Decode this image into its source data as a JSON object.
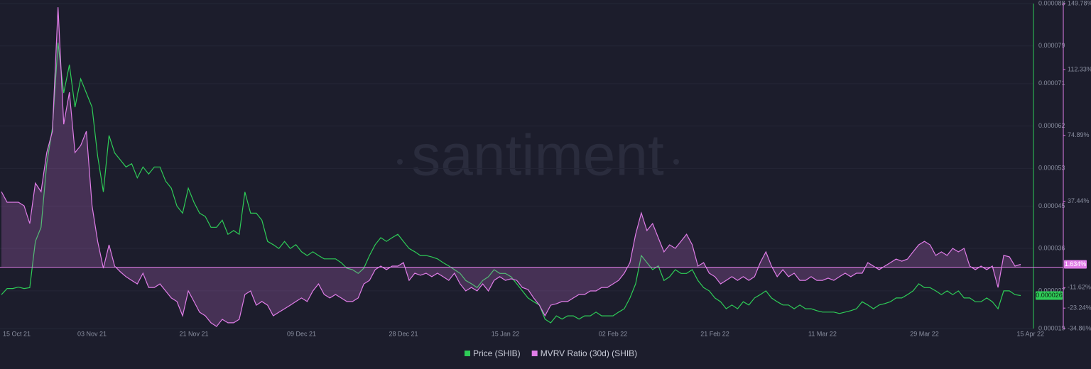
{
  "chart_data": {
    "type": "line",
    "watermark": "santiment",
    "categories": [
      "15 Oct 21",
      null,
      null,
      null,
      null,
      null,
      null,
      null,
      null,
      null,
      null,
      null,
      null,
      null,
      null,
      null,
      "03 Nov 21",
      null,
      null,
      null,
      null,
      null,
      null,
      null,
      null,
      null,
      null,
      null,
      null,
      null,
      null,
      null,
      null,
      null,
      "21 Nov 21",
      null,
      null,
      null,
      null,
      null,
      null,
      null,
      null,
      null,
      null,
      null,
      null,
      null,
      null,
      null,
      null,
      null,
      null,
      "09 Dec 21",
      null,
      null,
      null,
      null,
      null,
      null,
      null,
      null,
      null,
      null,
      null,
      null,
      null,
      null,
      null,
      null,
      null,
      "28 Dec 21",
      null,
      null,
      null,
      null,
      null,
      null,
      null,
      null,
      null,
      null,
      null,
      null,
      null,
      null,
      null,
      null,
      null,
      "15 Jan 22",
      null,
      null,
      null,
      null,
      null,
      null,
      null,
      null,
      null,
      null,
      null,
      null,
      null,
      null,
      null,
      null,
      null,
      null,
      "02 Feb 22",
      null,
      null,
      null,
      null,
      null,
      null,
      null,
      null,
      null,
      null,
      null,
      null,
      null,
      null,
      null,
      null,
      null,
      "21 Feb 22",
      null,
      null,
      null,
      null,
      null,
      null,
      null,
      null,
      null,
      null,
      null,
      null,
      null,
      null,
      null,
      null,
      null,
      null,
      "11 Mar 22",
      null,
      null,
      null,
      null,
      null,
      null,
      null,
      null,
      null,
      null,
      null,
      null,
      null,
      null,
      null,
      null,
      null,
      "29 Mar 22",
      null,
      null,
      null,
      null,
      null,
      null,
      null,
      null,
      null,
      null,
      null,
      null,
      null,
      null,
      null,
      null,
      "15 Apr 22"
    ],
    "series": [
      {
        "name": "Price (SHIB)",
        "color": "#2ecc57",
        "axis": "y",
        "last_label": "0.000026",
        "values": [
          2.62e-05,
          2.75e-05,
          2.75e-05,
          2.78e-05,
          2.75e-05,
          2.77e-05,
          3.75e-05,
          4.05e-05,
          5.4e-05,
          6.16e-05,
          7.97e-05,
          6.9e-05,
          7.5e-05,
          6.6e-05,
          7.2e-05,
          6.9e-05,
          6.6e-05,
          5.56e-05,
          4.8e-05,
          6e-05,
          5.63e-05,
          5.48e-05,
          5.33e-05,
          5.4e-05,
          5.1e-05,
          5.33e-05,
          5.18e-05,
          5.33e-05,
          5.33e-05,
          5.03e-05,
          4.88e-05,
          4.5e-05,
          4.35e-05,
          4.88e-05,
          4.58e-05,
          4.35e-05,
          4.28e-05,
          4.05e-05,
          4.05e-05,
          4.2e-05,
          3.9e-05,
          3.98e-05,
          3.9e-05,
          4.8e-05,
          4.35e-05,
          4.35e-05,
          4.2e-05,
          3.75e-05,
          3.68e-05,
          3.6e-05,
          3.75e-05,
          3.6e-05,
          3.68e-05,
          3.53e-05,
          3.45e-05,
          3.53e-05,
          3.45e-05,
          3.38e-05,
          3.38e-05,
          3.38e-05,
          3.3e-05,
          3.18e-05,
          3.15e-05,
          3.07e-05,
          3.18e-05,
          3.45e-05,
          3.68e-05,
          3.83e-05,
          3.75e-05,
          3.83e-05,
          3.9e-05,
          3.75e-05,
          3.6e-05,
          3.53e-05,
          3.45e-05,
          3.45e-05,
          3.42e-05,
          3.38e-05,
          3.3e-05,
          3.23e-05,
          3.15e-05,
          3.07e-05,
          2.92e-05,
          2.85e-05,
          2.77e-05,
          2.92e-05,
          3e-05,
          3.15e-05,
          3.07e-05,
          3.07e-05,
          3e-05,
          2.85e-05,
          2.7e-05,
          2.55e-05,
          2.47e-05,
          2.4e-05,
          2.1e-05,
          2.02e-05,
          2.17e-05,
          2.1e-05,
          2.17e-05,
          2.17e-05,
          2.1e-05,
          2.17e-05,
          2.17e-05,
          2.25e-05,
          2.17e-05,
          2.17e-05,
          2.17e-05,
          2.25e-05,
          2.32e-05,
          2.55e-05,
          2.85e-05,
          3.45e-05,
          3.3e-05,
          3.15e-05,
          3.23e-05,
          2.92e-05,
          3e-05,
          3.15e-05,
          3.07e-05,
          3.07e-05,
          3.15e-05,
          2.92e-05,
          2.77e-05,
          2.7e-05,
          2.55e-05,
          2.47e-05,
          2.32e-05,
          2.4e-05,
          2.32e-05,
          2.47e-05,
          2.4e-05,
          2.55e-05,
          2.62e-05,
          2.7e-05,
          2.55e-05,
          2.47e-05,
          2.4e-05,
          2.4e-05,
          2.32e-05,
          2.4e-05,
          2.32e-05,
          2.32e-05,
          2.28e-05,
          2.25e-05,
          2.25e-05,
          2.25e-05,
          2.22e-05,
          2.25e-05,
          2.28e-05,
          2.32e-05,
          2.47e-05,
          2.4e-05,
          2.32e-05,
          2.4e-05,
          2.43e-05,
          2.47e-05,
          2.55e-05,
          2.55e-05,
          2.62e-05,
          2.7e-05,
          2.85e-05,
          2.77e-05,
          2.77e-05,
          2.7e-05,
          2.62e-05,
          2.7e-05,
          2.62e-05,
          2.7e-05,
          2.55e-05,
          2.55e-05,
          2.47e-05,
          2.47e-05,
          2.55e-05,
          2.47e-05,
          2.32e-05,
          2.7e-05,
          2.7e-05,
          2.62e-05,
          2.6e-05
        ]
      },
      {
        "name": "MVRV Ratio (30d) (SHIB)",
        "color": "#e07de8",
        "axis": "y2",
        "last_label": "1.634%",
        "values": [
          42.9,
          36.9,
          36.9,
          36.9,
          34.9,
          24.8,
          47.8,
          42.9,
          65.1,
          77.2,
          147.7,
          81.2,
          99.4,
          65.1,
          69.1,
          77.2,
          34.9,
          14.7,
          -0.6,
          12.7,
          0.6,
          -2.6,
          -5.4,
          -7.5,
          -9.5,
          -3.4,
          -11.5,
          -11.5,
          -9.5,
          -13.5,
          -17.5,
          -19.5,
          -27.6,
          -13.5,
          -19.5,
          -25.6,
          -27.6,
          -31.6,
          -33.7,
          -29.6,
          -31.6,
          -31.6,
          -29.6,
          -15.5,
          -13.5,
          -21.6,
          -19.5,
          -21.6,
          -27.6,
          -25.6,
          -23.6,
          -21.6,
          -19.5,
          -17.5,
          -19.5,
          -13.5,
          -9.5,
          -15.5,
          -17.5,
          -15.5,
          -17.5,
          -19.5,
          -19.5,
          -17.5,
          -9.5,
          -7.5,
          -1.4,
          0.6,
          -1.4,
          0.6,
          0.6,
          2.6,
          -7.5,
          -3.4,
          -4.6,
          -3.4,
          -5.4,
          -3.4,
          -5.4,
          -7.5,
          -3.4,
          -9.5,
          -13.5,
          -11.5,
          -13.5,
          -9.5,
          -13.5,
          -7.5,
          -5.4,
          -7.5,
          -6.6,
          -7.5,
          -11.5,
          -12.7,
          -17.5,
          -21.6,
          -27.6,
          -21.6,
          -20.8,
          -19.5,
          -19.5,
          -17.5,
          -15.5,
          -15.5,
          -13.5,
          -13.5,
          -11.5,
          -11.5,
          -9.5,
          -7.5,
          -3.4,
          2.6,
          18.7,
          30.8,
          20.8,
          24.8,
          16.7,
          8.7,
          12.7,
          10.7,
          14.7,
          18.7,
          12.7,
          0.6,
          2.6,
          -3.4,
          -5.4,
          -9.5,
          -7.5,
          -5.4,
          -7.5,
          -5.4,
          -7.5,
          -5.4,
          2.6,
          8.7,
          0.6,
          -5.4,
          -1.4,
          -5.4,
          -3.4,
          -7.5,
          -7.5,
          -5.4,
          -7.5,
          -7.5,
          -6.2,
          -7.5,
          -5.4,
          -3.4,
          -5.4,
          -3.4,
          -3.4,
          2.6,
          0.6,
          -1.4,
          0.6,
          2.6,
          4.6,
          3.4,
          4.6,
          8.7,
          12.7,
          14.7,
          12.7,
          6.7,
          8.7,
          6.7,
          10.7,
          8.7,
          10.7,
          0.6,
          -1.4,
          0.6,
          -1.4,
          0.6,
          -11.5,
          6.7,
          5.9,
          0.6,
          1.634
        ]
      }
    ],
    "ylim": [
      1.9e-05,
      8.8e-05
    ],
    "yticks": [
      1.9e-05,
      2.7e-05,
      3.6e-05,
      4.5e-05,
      5.3e-05,
      6.2e-05,
      7.1e-05,
      7.9e-05,
      8.8e-05
    ],
    "y2lim": [
      -34.86,
      149.78
    ],
    "y2ticks": [
      {
        "value": -34.86,
        "label": "-34.86%"
      },
      {
        "value": -23.24,
        "label": "-23.24%"
      },
      {
        "value": -11.62,
        "label": "-11.62%"
      },
      {
        "value": 37.44,
        "label": "37.44%"
      },
      {
        "value": 74.89,
        "label": "74.89%"
      },
      {
        "value": 112.33,
        "label": "112.33%"
      },
      {
        "value": 149.78,
        "label": "149.78%"
      }
    ],
    "grid": true,
    "legend": "bottom"
  }
}
